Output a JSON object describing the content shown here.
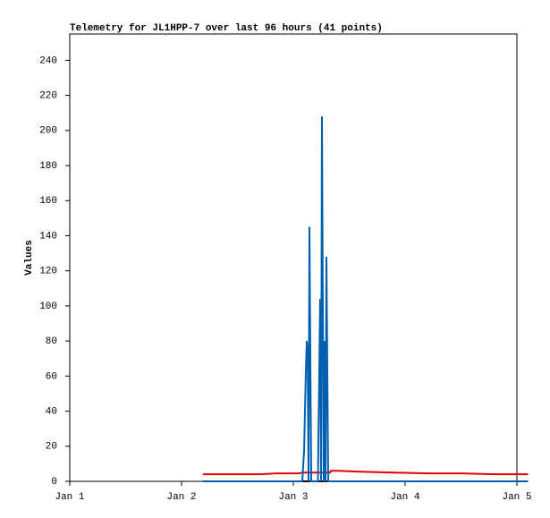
{
  "chart_data": {
    "type": "line",
    "title": "Telemetry for JL1HPP-7 over last 96 hours (41 points)",
    "y_label": "Values",
    "x": [
      1.19,
      1.45,
      1.7,
      1.85,
      2.0,
      2.05,
      2.08,
      2.096,
      2.104,
      2.112,
      2.12,
      2.128,
      2.136,
      2.144,
      2.152,
      2.16,
      2.168,
      2.176,
      2.184,
      2.2,
      2.22,
      2.24,
      2.248,
      2.256,
      2.264,
      2.272,
      2.28,
      2.288,
      2.296,
      2.304,
      2.312,
      2.32,
      2.328,
      2.336,
      2.4,
      2.6,
      2.9,
      3.2,
      3.5,
      3.8,
      4.1
    ],
    "series": [
      {
        "color": "#000000",
        "values": [
          0,
          0,
          0,
          0,
          0,
          0,
          0,
          0,
          0,
          0,
          0,
          0,
          0,
          0,
          0,
          0,
          0,
          0,
          0,
          0,
          0,
          0,
          0,
          0,
          0,
          0,
          0,
          0,
          0,
          0,
          0,
          0,
          0,
          0,
          0,
          0,
          0,
          0,
          0,
          0,
          0
        ]
      },
      {
        "color": "#e00000",
        "values": [
          4,
          4,
          4,
          4.5,
          4.5,
          4.5,
          5,
          5,
          5,
          5,
          5,
          5,
          5,
          5,
          5,
          5,
          5,
          5,
          5,
          5,
          5,
          5,
          5,
          5,
          5,
          5,
          5,
          5,
          5,
          5,
          5,
          5,
          5,
          6,
          6,
          5.5,
          5,
          4.5,
          4.5,
          4,
          4
        ]
      },
      {
        "color": "#0060b0",
        "values": [
          0,
          0,
          0,
          0,
          0,
          0,
          0,
          17,
          40,
          63,
          80,
          74,
          0,
          145,
          72,
          0,
          0,
          0,
          0,
          0,
          0,
          104,
          0,
          208,
          97,
          0,
          80,
          0,
          128,
          64,
          0,
          0,
          0,
          0,
          0,
          0,
          0,
          0,
          0,
          0,
          0
        ]
      }
    ],
    "xlim": [
      0,
      4
    ],
    "xticks": [
      {
        "value": 0,
        "label": "Jan 1"
      },
      {
        "value": 1,
        "label": "Jan 2"
      },
      {
        "value": 2,
        "label": "Jan 3"
      },
      {
        "value": 3,
        "label": "Jan 4"
      },
      {
        "value": 4,
        "label": "Jan 5"
      }
    ],
    "ylim": [
      0,
      255
    ],
    "yticks": [
      0,
      20,
      40,
      60,
      80,
      100,
      120,
      140,
      160,
      180,
      200,
      220,
      240
    ]
  }
}
